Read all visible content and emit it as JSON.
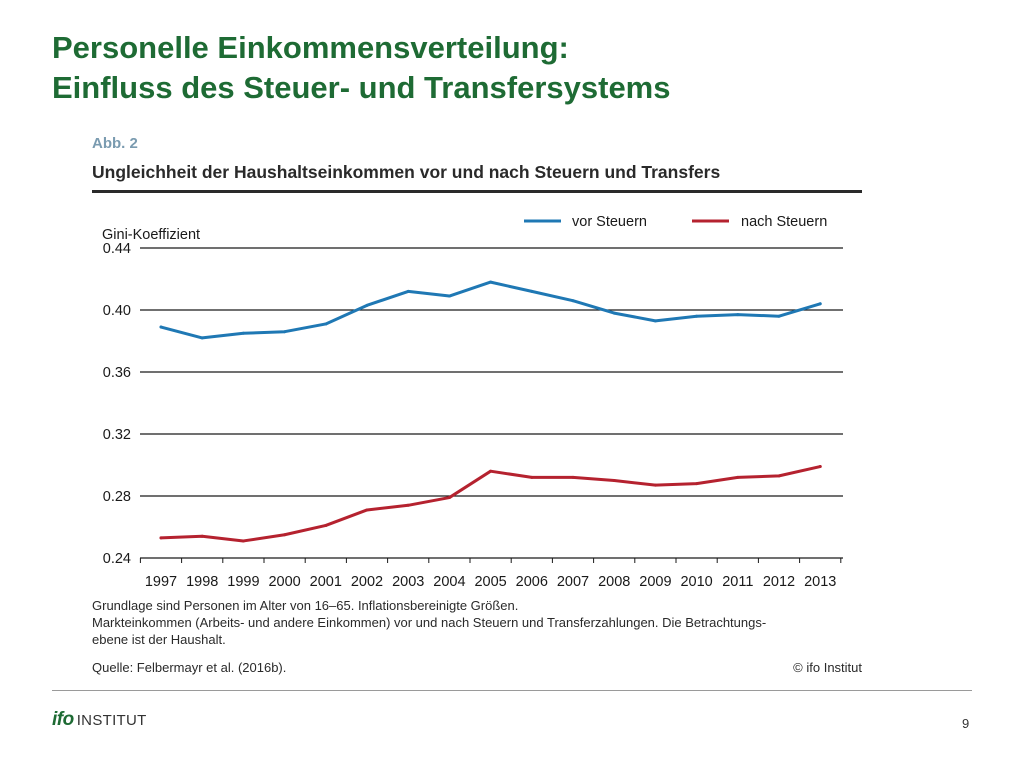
{
  "slide": {
    "title_line1": "Personelle Einkommensverteilung:",
    "title_line2": "Einfluss des Steuer- und Transfersystems",
    "page_number": "9"
  },
  "figure": {
    "label": "Abb. 2",
    "title": "Ungleichheit der Haushaltseinkommen vor und nach Steuern und Transfers",
    "note_line1": "Grundlage sind Personen im Alter von 16–65. Inflationsbereinigte Größen.",
    "note_line2": "Markteinkommen (Arbeits- und andere Einkommen) vor und nach Steuern und Transferzahlungen. Die Betrachtungs-",
    "note_line3": "ebene ist der Haushalt.",
    "source": "Quelle: Felbermayr et al. (2016b).",
    "copyright": "© ifo Institut"
  },
  "logo": {
    "mark": "ifo",
    "word": "INSTITUT"
  },
  "colors": {
    "title_green": "#1e6b34",
    "series_blue": "#1f78b4",
    "series_red": "#b5222f",
    "fig_label": "#7a9bb0"
  },
  "chart_data": {
    "type": "line",
    "title": "Ungleichheit der Haushaltseinkommen vor und nach Steuern und Transfers",
    "xlabel": "",
    "ylabel": "Gini-Koeffizient",
    "x": [
      "1997",
      "1998",
      "1999",
      "2000",
      "2001",
      "2002",
      "2003",
      "2004",
      "2005",
      "2006",
      "2007",
      "2008",
      "2009",
      "2010",
      "2011",
      "2012",
      "2013"
    ],
    "yticks": [
      "0.24",
      "0.28",
      "0.32",
      "0.36",
      "0.40",
      "0.44"
    ],
    "ylim": [
      0.24,
      0.44
    ],
    "grid": true,
    "legend_position": "top-right",
    "series": [
      {
        "name": "vor Steuern",
        "color": "#1f78b4",
        "values": [
          0.389,
          0.382,
          0.385,
          0.386,
          0.391,
          0.403,
          0.412,
          0.409,
          0.418,
          0.412,
          0.406,
          0.398,
          0.393,
          0.396,
          0.397,
          0.396,
          0.404
        ]
      },
      {
        "name": "nach Steuern",
        "color": "#b5222f",
        "values": [
          0.253,
          0.254,
          0.251,
          0.255,
          0.261,
          0.271,
          0.274,
          0.279,
          0.296,
          0.292,
          0.292,
          0.29,
          0.287,
          0.288,
          0.292,
          0.293,
          0.299
        ]
      }
    ]
  }
}
